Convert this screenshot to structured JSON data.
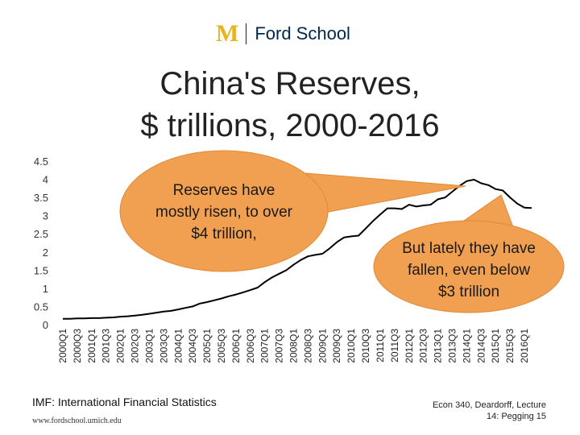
{
  "header": {
    "logo_mark": "M",
    "logo_text": "Ford School"
  },
  "slide": {
    "title_line1": "China's Reserves,",
    "title_line2": "$ trillions, 2000-2016",
    "source": "IMF: International Financial Statistics",
    "url": "www.fordschool.umich.edu",
    "footer_line1": "Econ 340, Deardorff, Lecture",
    "footer_line2": "14: Pegging",
    "page_number": "15"
  },
  "colors": {
    "line": "#000000",
    "callout_fill": "#F0A050",
    "callout_stroke": "#E08A35",
    "logo_gold": "#E7B321",
    "logo_blue": "#00274C"
  },
  "chart_data": {
    "type": "line",
    "title": "",
    "xlabel": "",
    "ylabel": "",
    "ylim": [
      0,
      4.5
    ],
    "yticks": [
      "0",
      "0.5",
      "1",
      "1.5",
      "2",
      "2.5",
      "3",
      "3.5",
      "4",
      "4.5"
    ],
    "grid": false,
    "x": [
      "2000Q1",
      "2000Q2",
      "2000Q3",
      "2000Q4",
      "2001Q1",
      "2001Q2",
      "2001Q3",
      "2001Q4",
      "2002Q1",
      "2002Q2",
      "2002Q3",
      "2002Q4",
      "2003Q1",
      "2003Q2",
      "2003Q3",
      "2003Q4",
      "2004Q1",
      "2004Q2",
      "2004Q3",
      "2004Q4",
      "2005Q1",
      "2005Q2",
      "2005Q3",
      "2005Q4",
      "2006Q1",
      "2006Q2",
      "2006Q3",
      "2006Q4",
      "2007Q1",
      "2007Q2",
      "2007Q3",
      "2007Q4",
      "2008Q1",
      "2008Q2",
      "2008Q3",
      "2008Q4",
      "2009Q1",
      "2009Q2",
      "2009Q3",
      "2009Q4",
      "2010Q1",
      "2010Q2",
      "2010Q3",
      "2010Q4",
      "2011Q1",
      "2011Q2",
      "2011Q3",
      "2011Q4",
      "2012Q1",
      "2012Q2",
      "2012Q3",
      "2012Q4",
      "2013Q1",
      "2013Q2",
      "2013Q3",
      "2013Q4",
      "2014Q1",
      "2014Q2",
      "2014Q3",
      "2014Q4",
      "2015Q1",
      "2015Q2",
      "2015Q3",
      "2015Q4",
      "2016Q1",
      "2016Q2"
    ],
    "x_tick_labels": [
      "2000Q1",
      "2000Q3",
      "2001Q1",
      "2001Q3",
      "2002Q1",
      "2002Q3",
      "2003Q1",
      "2003Q3",
      "2004Q1",
      "2004Q3",
      "2005Q1",
      "2005Q3",
      "2006Q1",
      "2006Q3",
      "2007Q1",
      "2007Q3",
      "2008Q1",
      "2008Q3",
      "2009Q1",
      "2009Q3",
      "2010Q1",
      "2010Q3",
      "2011Q1",
      "2011Q3",
      "2012Q1",
      "2012Q3",
      "2013Q1",
      "2013Q3",
      "2014Q1",
      "2014Q3",
      "2015Q1",
      "2015Q3",
      "2016Q1"
    ],
    "series": [
      {
        "values": [
          0.16,
          0.16,
          0.17,
          0.17,
          0.18,
          0.18,
          0.19,
          0.2,
          0.22,
          0.23,
          0.25,
          0.27,
          0.3,
          0.33,
          0.36,
          0.38,
          0.42,
          0.46,
          0.5,
          0.58,
          0.62,
          0.67,
          0.72,
          0.78,
          0.83,
          0.89,
          0.95,
          1.02,
          1.17,
          1.3,
          1.4,
          1.5,
          1.65,
          1.78,
          1.88,
          1.92,
          1.95,
          2.1,
          2.27,
          2.4,
          2.43,
          2.45,
          2.65,
          2.85,
          3.03,
          3.2,
          3.2,
          3.18,
          3.3,
          3.25,
          3.28,
          3.3,
          3.45,
          3.5,
          3.66,
          3.82,
          3.95,
          3.99,
          3.89,
          3.84,
          3.73,
          3.69,
          3.5,
          3.33,
          3.22,
          3.21
        ]
      }
    ],
    "annotations": [
      {
        "text": "Reserves have mostly risen, to over $4 trillion,"
      },
      {
        "text": "But lately they have fallen, even below $3 trillion"
      }
    ]
  }
}
